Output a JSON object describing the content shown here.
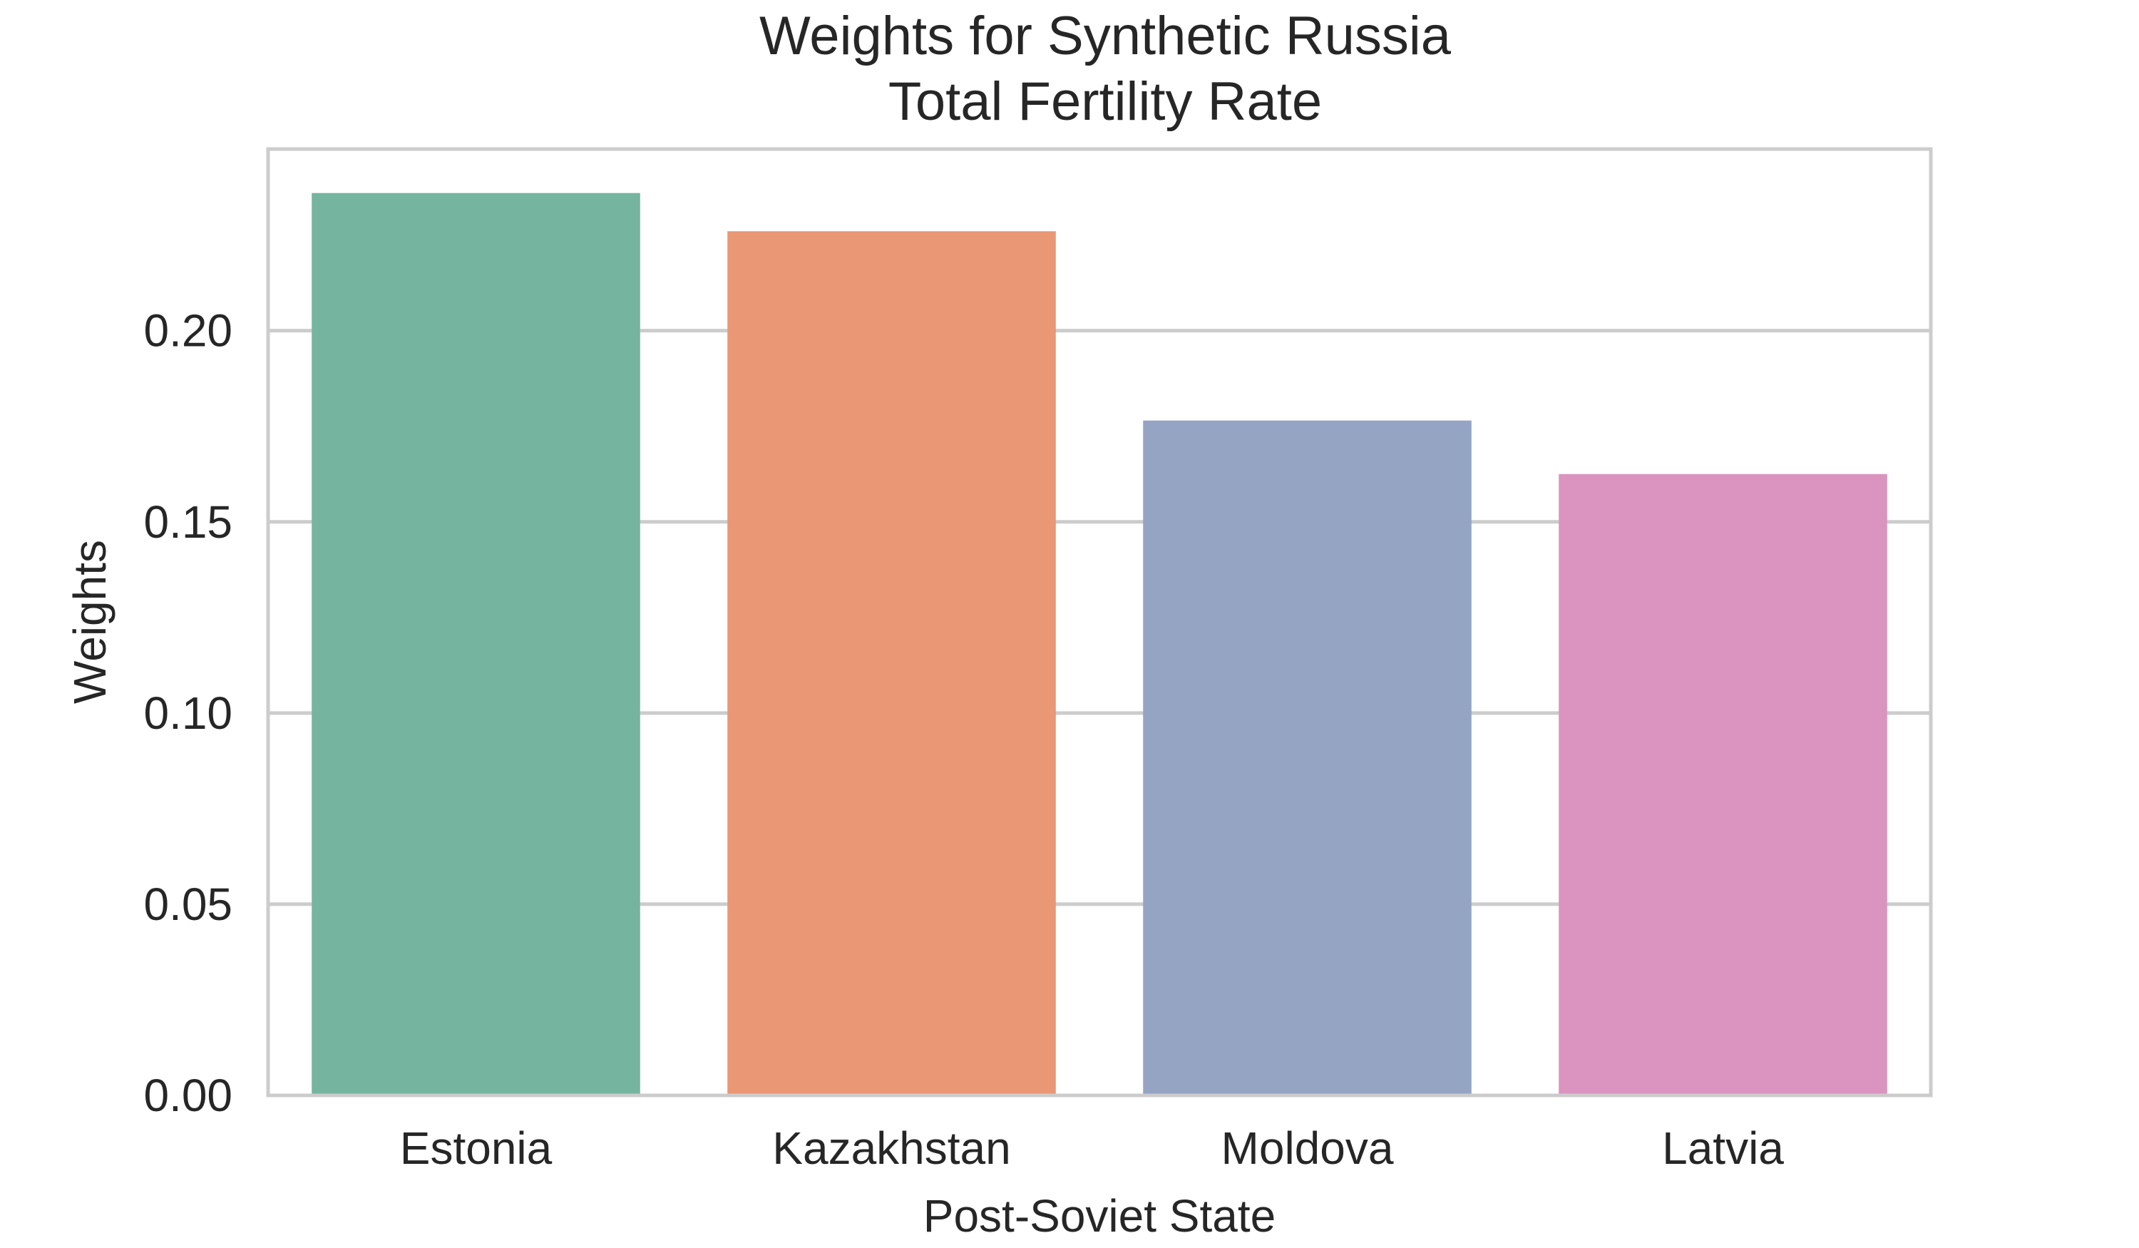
{
  "chart_data": {
    "type": "bar",
    "title": [
      "Weights for Synthetic Russia",
      "Total Fertility Rate"
    ],
    "xlabel": "Post-Soviet State",
    "ylabel": "Weights",
    "categories": [
      "Estonia",
      "Kazakhstan",
      "Moldova",
      "Latvia"
    ],
    "values": [
      0.236,
      0.226,
      0.1765,
      0.1625
    ],
    "colors": [
      "#75b5a0",
      "#e99775",
      "#95a4c3",
      "#db94bf"
    ],
    "ylim": [
      0,
      0.2475
    ],
    "yticks": [
      0.0,
      0.05,
      0.1,
      0.15,
      0.2
    ],
    "ytick_labels": [
      "0.00",
      "0.05",
      "0.10",
      "0.15",
      "0.20"
    ],
    "grid": true,
    "grid_axis": "y",
    "legend": "none"
  }
}
